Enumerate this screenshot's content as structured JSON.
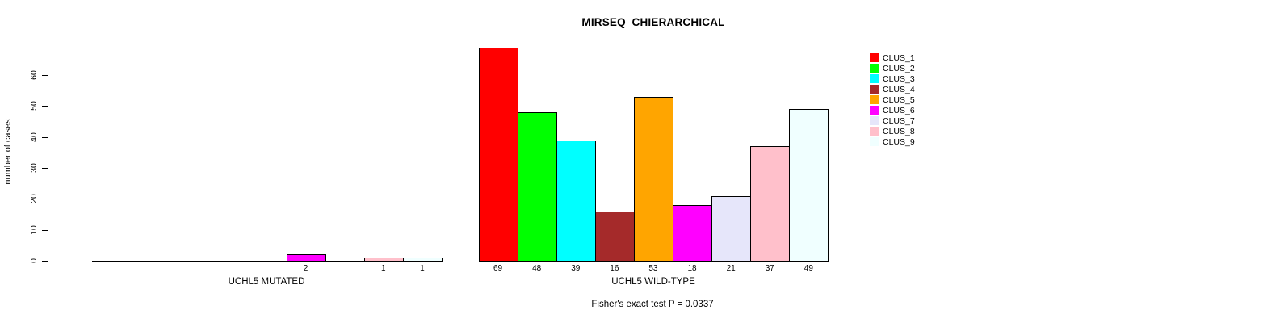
{
  "chart_data": {
    "type": "bar",
    "title": "MIRSEQ_CHIERARCHICAL",
    "ylabel": "number of cases",
    "xlabel": "",
    "annotation": "Fisher's exact test P = 0.0337",
    "ylim": [
      0,
      69
    ],
    "yticks": [
      0,
      10,
      20,
      30,
      40,
      50,
      60
    ],
    "grid": false,
    "legend_position": "top-right",
    "categories": [
      "CLUS_1",
      "CLUS_2",
      "CLUS_3",
      "CLUS_4",
      "CLUS_5",
      "CLUS_6",
      "CLUS_7",
      "CLUS_8",
      "CLUS_9"
    ],
    "colors": [
      "#FF0000",
      "#00FF00",
      "#00FFFF",
      "#A52A2A",
      "#FFA500",
      "#FF00FF",
      "#E6E6FA",
      "#FFC0CB",
      "#F0FFFF"
    ],
    "groups": [
      {
        "label": "UCHL5 MUTATED",
        "values": [
          0,
          0,
          0,
          0,
          0,
          2,
          0,
          1,
          1
        ],
        "bar_labels": [
          "",
          "",
          "",
          "",
          "",
          "2",
          "",
          "1",
          "1"
        ]
      },
      {
        "label": "UCHL5 WILD-TYPE",
        "values": [
          69,
          48,
          39,
          16,
          53,
          18,
          21,
          37,
          49
        ],
        "bar_labels": [
          "69",
          "48",
          "39",
          "16",
          "53",
          "18",
          "21",
          "37",
          "49"
        ]
      }
    ]
  }
}
